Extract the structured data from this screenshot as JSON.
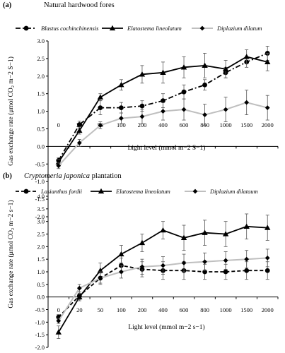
{
  "chart_data": [
    {
      "type": "line",
      "panel_label": "(a)",
      "title": "Natural hardwood fores",
      "title_italic": "",
      "xlabel": "Light level (mmol m−2 S−1)",
      "ylabel": "Gas exchange rate (μmol CO₂ m−2 S−1)",
      "categories": [
        "0",
        "20",
        "50",
        "100",
        "200",
        "400",
        "600",
        "800",
        "1000",
        "1500",
        "2000"
      ],
      "ylim": [
        -2.0,
        3.0
      ],
      "yticks": [
        "-2.0",
        "-1.5",
        "-1.0",
        "-0.5",
        "0.0",
        "0.5",
        "1.0",
        "1.5",
        "2.0",
        "2.5",
        "3.0"
      ],
      "grid": false,
      "legend_position": "top",
      "series": [
        {
          "name": "Blastus cochinchinensis",
          "marker": "circle",
          "style": "dashdot",
          "color": "#000000",
          "values": [
            -0.4,
            0.62,
            1.1,
            1.1,
            1.15,
            1.3,
            1.55,
            1.75,
            2.1,
            2.4,
            2.65
          ],
          "errors": [
            0.08,
            0.1,
            0.2,
            0.15,
            0.15,
            0.2,
            0.2,
            0.15,
            0.15,
            0.15,
            0.2
          ]
        },
        {
          "name": "Elatostema lineolatum",
          "marker": "triangle",
          "style": "solid",
          "color": "#000000",
          "values": [
            -0.45,
            0.45,
            1.4,
            1.75,
            2.05,
            2.1,
            2.25,
            2.3,
            2.2,
            2.55,
            2.4
          ],
          "errors": [
            0.08,
            0.1,
            0.1,
            0.15,
            0.25,
            0.3,
            0.3,
            0.35,
            0.25,
            0.2,
            0.25
          ]
        },
        {
          "name": "Diplazium dilatum",
          "marker": "diamond",
          "style": "solid",
          "color": "#bfbfbf",
          "values": [
            -0.55,
            0.1,
            0.6,
            0.8,
            0.85,
            1.0,
            1.05,
            0.9,
            1.05,
            1.25,
            1.1
          ],
          "errors": [
            0.08,
            0.1,
            0.1,
            0.15,
            0.2,
            0.25,
            0.3,
            0.3,
            0.35,
            0.35,
            0.35
          ]
        }
      ]
    },
    {
      "type": "line",
      "panel_label": "(b)",
      "title": " plantation",
      "title_italic": "Cryptomeria japonica",
      "xlabel": "Light level (mmol m−2 s−1)",
      "ylabel": "Gas exchange rate (μmol CO₂ m−2 s−1)",
      "categories": [
        "0",
        "20",
        "50",
        "100",
        "200",
        "400",
        "600",
        "800",
        "1000",
        "1500",
        "2000"
      ],
      "ylim": [
        -2.0,
        4.0
      ],
      "yticks": [
        "-2.0",
        "-1.5",
        "-1.0",
        "-0.5",
        "0.0",
        "0.5",
        "1.0",
        "1.5",
        "2.0",
        "2.5",
        "3.0",
        "3.5",
        "4.0"
      ],
      "grid": false,
      "legend_position": "top",
      "series": [
        {
          "name": "Lasianthus fordii",
          "marker": "circle",
          "style": "dashed",
          "color": "#000000",
          "values": [
            -0.8,
            0.05,
            0.75,
            1.25,
            1.1,
            1.05,
            1.05,
            1.0,
            1.0,
            1.05,
            1.05
          ],
          "errors": [
            0.1,
            0.15,
            0.2,
            0.3,
            0.3,
            0.35,
            0.35,
            0.3,
            0.3,
            0.35,
            0.35
          ]
        },
        {
          "name": "Elatostema lineolatum",
          "marker": "triangle",
          "style": "solid",
          "color": "#000000",
          "values": [
            -1.4,
            0.0,
            1.05,
            1.7,
            2.15,
            2.65,
            2.35,
            2.55,
            2.5,
            2.8,
            2.75
          ],
          "errors": [
            0.25,
            0.15,
            0.3,
            0.35,
            0.35,
            0.35,
            0.5,
            0.5,
            0.5,
            0.5,
            0.5
          ]
        },
        {
          "name": "Diplazium dilataum",
          "marker": "diamond",
          "style": "solid",
          "color": "#bfbfbf",
          "values": [
            -0.95,
            0.35,
            0.75,
            1.0,
            1.2,
            1.25,
            1.35,
            1.4,
            1.45,
            1.5,
            1.55
          ],
          "errors": [
            0.1,
            0.15,
            0.25,
            0.25,
            0.3,
            0.35,
            0.35,
            0.35,
            0.35,
            0.35,
            0.35
          ]
        }
      ]
    }
  ]
}
